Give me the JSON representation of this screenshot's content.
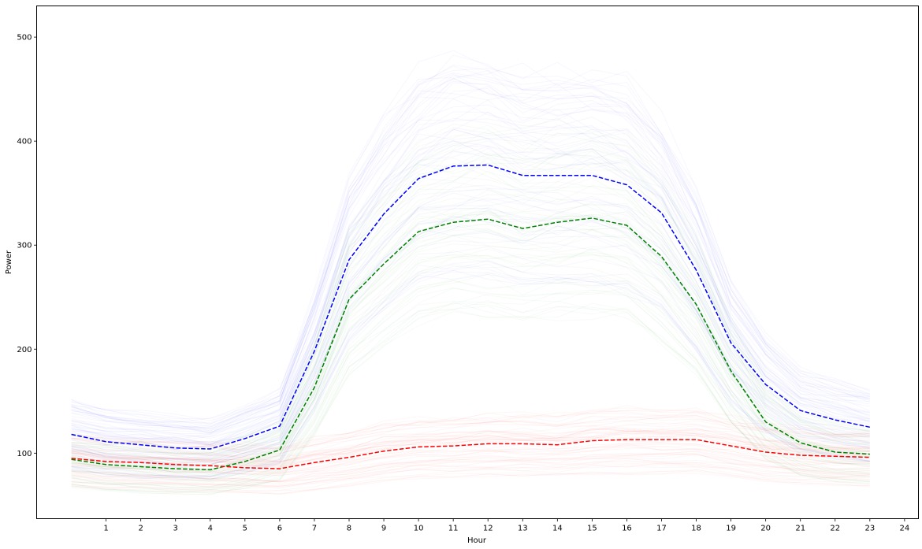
{
  "chart_data": {
    "type": "line",
    "title": "",
    "xlabel": "Hour",
    "ylabel": "Power",
    "xlim": [
      -1,
      24.4
    ],
    "ylim": [
      37,
      530
    ],
    "xticks": [
      1,
      2,
      3,
      4,
      5,
      6,
      7,
      8,
      9,
      10,
      11,
      12,
      13,
      14,
      15,
      16,
      17,
      18,
      19,
      20,
      21,
      22,
      23,
      24
    ],
    "yticks": [
      100,
      200,
      300,
      400,
      500
    ],
    "grid": false,
    "legend": "none",
    "x": [
      0,
      1,
      2,
      3,
      4,
      5,
      6,
      7,
      8,
      9,
      10,
      11,
      12,
      13,
      14,
      15,
      16,
      17,
      18,
      19,
      20,
      21,
      22,
      23
    ],
    "series": [
      {
        "color": "#0000ff",
        "line_style": "dashed",
        "values": [
          118,
          111,
          108,
          105,
          104,
          114,
          126,
          198,
          286,
          330,
          364,
          376,
          377,
          367,
          367,
          367,
          358,
          331,
          276,
          206,
          166,
          141,
          132,
          125
        ]
      },
      {
        "color": "#008000",
        "line_style": "dashed",
        "values": [
          94,
          89,
          87,
          85,
          84,
          92,
          103,
          163,
          248,
          282,
          313,
          322,
          325,
          316,
          322,
          326,
          319,
          289,
          243,
          179,
          130,
          110,
          101,
          99
        ]
      },
      {
        "color": "#ff0000",
        "line_style": "dashed",
        "values": [
          95,
          92,
          91,
          89,
          88,
          86,
          85,
          91,
          96,
          102,
          106,
          107,
          109,
          109,
          108,
          112,
          113,
          113,
          113,
          107,
          101,
          98,
          97,
          96
        ]
      }
    ],
    "background_traces": [
      {
        "color": "#0000ff",
        "around_series": 0,
        "count": 60,
        "opacity": 0.035
      },
      {
        "color": "#008000",
        "around_series": 1,
        "count": 60,
        "opacity": 0.035
      },
      {
        "color": "#ff0000",
        "around_series": 2,
        "count": 60,
        "opacity": 0.035
      }
    ]
  }
}
